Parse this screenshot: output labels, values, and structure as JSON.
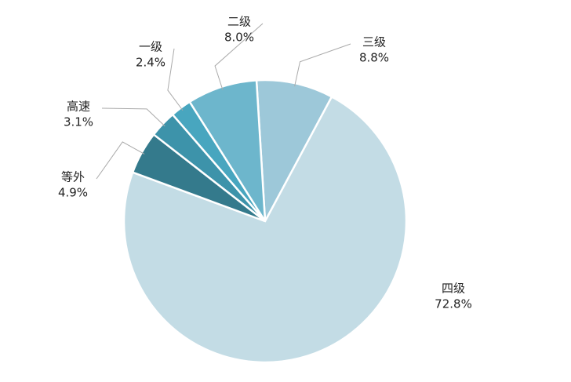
{
  "chart_data": {
    "type": "pie",
    "categories": [
      "三级",
      "四级",
      "等外",
      "高速",
      "一级",
      "二级"
    ],
    "values": [
      8.8,
      72.8,
      4.9,
      3.1,
      2.4,
      8.0
    ],
    "value_labels": [
      "8.8%",
      "72.8%",
      "4.9%",
      "3.1%",
      "2.4%",
      "8.0%"
    ],
    "colors": [
      "#9dc8d9",
      "#c3dce5",
      "#347a8c",
      "#3d93aa",
      "#48a6bf",
      "#6db6cc"
    ]
  }
}
